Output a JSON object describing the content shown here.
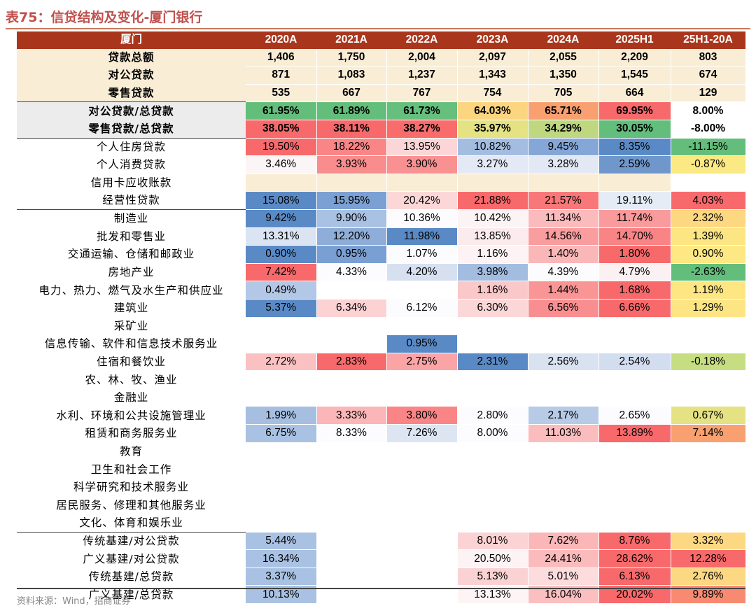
{
  "title": "表75：信贷结构及变化-厦门银行",
  "source": "资料来源：Wind，招商证券",
  "header": [
    "厦门",
    "2020A",
    "2021A",
    "2022A",
    "2023A",
    "2024A",
    "2025H1",
    "25H1-20A"
  ],
  "rows": [
    {
      "label": "贷款总额",
      "group": "summary",
      "values": [
        "1,406",
        "1,750",
        "2,004",
        "2,097",
        "2,055",
        "2,209",
        "803"
      ],
      "colors": [
        "",
        "",
        "",
        "",
        "",
        "",
        ""
      ]
    },
    {
      "label": "对公贷款",
      "group": "summary",
      "values": [
        "871",
        "1,083",
        "1,237",
        "1,343",
        "1,350",
        "1,545",
        "674"
      ],
      "colors": [
        "",
        "",
        "",
        "",
        "",
        "",
        ""
      ]
    },
    {
      "label": "零售贷款",
      "group": "summary",
      "values": [
        "535",
        "667",
        "767",
        "754",
        "705",
        "664",
        "129"
      ],
      "colors": [
        "",
        "",
        "",
        "",
        "",
        "",
        ""
      ]
    },
    {
      "label": "对公贷款/总贷款",
      "group": "ratio",
      "sep": true,
      "values": [
        "61.95%",
        "61.89%",
        "61.73%",
        "64.03%",
        "65.71%",
        "69.95%",
        "8.00%"
      ],
      "colors": [
        "#63be7b",
        "#63be7b",
        "#66bf7c",
        "#fcd580",
        "#f9a070",
        "#f8696b",
        "#ffffff"
      ]
    },
    {
      "label": "零售贷款/总贷款",
      "group": "ratio",
      "values": [
        "38.05%",
        "38.11%",
        "38.27%",
        "35.97%",
        "34.29%",
        "30.05%",
        "-8.00%"
      ],
      "colors": [
        "#f8696b",
        "#f8696b",
        "#f86d6c",
        "#e4e283",
        "#bfd880",
        "#63be7b",
        "#ffffff"
      ]
    },
    {
      "label": "个人住房贷款",
      "group": "detail",
      "sep": true,
      "values": [
        "19.50%",
        "18.22%",
        "13.95%",
        "10.82%",
        "9.45%",
        "8.35%",
        "-11.15%"
      ],
      "colors": [
        "#f8696b",
        "#f98587",
        "#fcd6d7",
        "#a3bde0",
        "#85a7d7",
        "#5a8ac6",
        "#63be7b"
      ]
    },
    {
      "label": "个人消费贷款",
      "group": "detail",
      "values": [
        "3.46%",
        "3.93%",
        "3.90%",
        "3.27%",
        "3.28%",
        "2.59%",
        "-0.87%"
      ],
      "colors": [
        "#fcf5f5",
        "#f98c8d",
        "#f99193",
        "#e3e9f5",
        "#e2e8f4",
        "#6f97cb",
        "#fbe983"
      ]
    },
    {
      "label": "信用卡应收账款",
      "group": "detail",
      "values": [
        "",
        "",
        "",
        "",
        "",
        "",
        ""
      ],
      "colors": [
        "#faedd6",
        "#faedd6",
        "#faedd6",
        "#faedd6",
        "#faedd6",
        "#faedd6",
        "#ffffff"
      ]
    },
    {
      "label": "经营性贷款",
      "group": "detail",
      "values": [
        "15.08%",
        "15.95%",
        "20.42%",
        "21.88%",
        "21.57%",
        "19.11%",
        "4.03%"
      ],
      "colors": [
        "#5a8ac6",
        "#7ba0d3",
        "#fcd7d8",
        "#f8696b",
        "#f8787a",
        "#e6ecf6",
        "#f8696b"
      ]
    },
    {
      "label": "制造业",
      "group": "detail",
      "sep": true,
      "values": [
        "9.42%",
        "9.90%",
        "10.36%",
        "10.42%",
        "11.34%",
        "11.74%",
        "2.32%"
      ],
      "colors": [
        "#5a8ac6",
        "#a9c1e2",
        "#fcfcff",
        "#fcf3f4",
        "#fbbabb",
        "#f99a9c",
        "#fed781"
      ]
    },
    {
      "label": "批发和零售业",
      "group": "detail",
      "values": [
        "13.31%",
        "12.20%",
        "11.98%",
        "13.85%",
        "14.56%",
        "14.70%",
        "1.39%"
      ],
      "colors": [
        "#dbe4f2",
        "#8fadd9",
        "#5a8ac6",
        "#fcebec",
        "#fa9d9f",
        "#f98486",
        "#fce583"
      ]
    },
    {
      "label": "交通运输、仓储和邮政业",
      "group": "detail",
      "values": [
        "0.90%",
        "0.95%",
        "1.07%",
        "1.16%",
        "1.40%",
        "1.80%",
        "0.90%"
      ],
      "colors": [
        "#5a8ac6",
        "#7a9fd2",
        "#fcfcff",
        "#fdf3f4",
        "#fab7b8",
        "#f8696b",
        "#fde884"
      ]
    },
    {
      "label": "房地产业",
      "group": "detail",
      "values": [
        "7.42%",
        "4.33%",
        "4.20%",
        "3.98%",
        "4.39%",
        "4.79%",
        "-2.63%"
      ],
      "colors": [
        "#f8696b",
        "#fcfcff",
        "#d6e0f0",
        "#a3bde0",
        "#fcfcff",
        "#fcf1f2",
        "#63be7b"
      ]
    },
    {
      "label": "电力、热力、燃气及水生产和供应业",
      "group": "detail",
      "values": [
        "0.49%",
        "",
        "",
        "1.16%",
        "1.44%",
        "1.68%",
        "1.19%"
      ],
      "colors": [
        "#b2c8e6",
        "",
        "",
        "#fbc8c9",
        "#fa9596",
        "#f8696b",
        "#fee683"
      ]
    },
    {
      "label": "建筑业",
      "group": "detail",
      "values": [
        "5.37%",
        "6.34%",
        "6.12%",
        "6.30%",
        "6.56%",
        "6.66%",
        "1.29%"
      ],
      "colors": [
        "#5a8ac6",
        "#fcd2d3",
        "#fcfcff",
        "#fcd7d8",
        "#f98e90",
        "#f8696b",
        "#fde583"
      ]
    },
    {
      "label": "采矿业",
      "group": "detail",
      "values": [
        "",
        "",
        "",
        "",
        "",
        "",
        ""
      ],
      "colors": [
        "",
        "",
        "",
        "",
        "",
        "",
        ""
      ]
    },
    {
      "label": "信息传输、软件和信息技术服务业",
      "group": "detail",
      "values": [
        "",
        "",
        "0.95%",
        "",
        "",
        "",
        ""
      ],
      "colors": [
        "",
        "",
        "#5a8ac6",
        "",
        "",
        "",
        ""
      ]
    },
    {
      "label": "住宿和餐饮业",
      "group": "detail",
      "values": [
        "2.72%",
        "2.83%",
        "2.75%",
        "2.31%",
        "2.56%",
        "2.54%",
        "-0.18%"
      ],
      "colors": [
        "#fbc1c2",
        "#f8696b",
        "#faa4a6",
        "#5a8ac6",
        "#d9e2f1",
        "#d2ddef",
        "#c7dd82"
      ]
    },
    {
      "label": "农、林、牧、渔业",
      "group": "detail",
      "values": [
        "",
        "",
        "",
        "",
        "",
        "",
        ""
      ],
      "colors": [
        "",
        "",
        "",
        "",
        "",
        "",
        ""
      ]
    },
    {
      "label": "金融业",
      "group": "detail",
      "values": [
        "",
        "",
        "",
        "",
        "",
        "",
        ""
      ],
      "colors": [
        "",
        "",
        "",
        "",
        "",
        "",
        ""
      ]
    },
    {
      "label": "水利、环境和公共设施管理业",
      "group": "detail",
      "values": [
        "1.99%",
        "3.33%",
        "3.80%",
        "2.80%",
        "2.17%",
        "2.65%",
        "0.67%"
      ],
      "colors": [
        "#a6bfe1",
        "#fbb6b7",
        "#f98587",
        "#fcfcff",
        "#b7cbe7",
        "#fcfcff",
        "#e4e283"
      ]
    },
    {
      "label": "租赁和商务服务业",
      "group": "detail",
      "values": [
        "6.75%",
        "8.33%",
        "7.26%",
        "8.00%",
        "11.03%",
        "13.89%",
        "7.14%"
      ],
      "colors": [
        "#a9c1e2",
        "#fcfcff",
        "#dde5f3",
        "#fcfcff",
        "#fbbcbd",
        "#f8696b",
        "#f9a070"
      ]
    },
    {
      "label": "教育",
      "group": "detail",
      "values": [
        "",
        "",
        "",
        "",
        "",
        "",
        ""
      ],
      "colors": [
        "",
        "",
        "",
        "",
        "",
        "",
        ""
      ]
    },
    {
      "label": "卫生和社会工作",
      "group": "detail",
      "values": [
        "",
        "",
        "",
        "",
        "",
        "",
        ""
      ],
      "colors": [
        "",
        "",
        "",
        "",
        "",
        "",
        ""
      ]
    },
    {
      "label": "科学研究和技术服务业",
      "group": "detail",
      "values": [
        "",
        "",
        "",
        "",
        "",
        "",
        ""
      ],
      "colors": [
        "",
        "",
        "",
        "",
        "",
        "",
        ""
      ]
    },
    {
      "label": "居民服务、修理和其他服务业",
      "group": "detail",
      "values": [
        "",
        "",
        "",
        "",
        "",
        "",
        ""
      ],
      "colors": [
        "",
        "",
        "",
        "",
        "",
        "",
        ""
      ]
    },
    {
      "label": "文化、体育和娱乐业",
      "group": "detail",
      "values": [
        "",
        "",
        "",
        "",
        "",
        "",
        ""
      ],
      "colors": [
        "",
        "",
        "",
        "",
        "",
        "",
        ""
      ]
    },
    {
      "label": "传统基建/对公贷款",
      "group": "detail",
      "sep": true,
      "values": [
        "5.44%",
        "",
        "",
        "8.01%",
        "7.62%",
        "8.76%",
        "3.32%"
      ],
      "colors": [
        "#a9c1e2",
        "",
        "",
        "#fbd3d4",
        "#fbb6b7",
        "#f8696b",
        "#fdd882"
      ]
    },
    {
      "label": "广义基建/对公贷款",
      "group": "detail",
      "values": [
        "16.34%",
        "",
        "",
        "20.50%",
        "24.41%",
        "28.62%",
        "12.28%"
      ],
      "colors": [
        "#a9c1e2",
        "",
        "",
        "#fdf3f4",
        "#fbbabb",
        "#f8696b",
        "#f8696b"
      ]
    },
    {
      "label": "传统基建/总贷款",
      "group": "detail",
      "values": [
        "3.37%",
        "",
        "",
        "5.13%",
        "5.01%",
        "6.13%",
        "2.76%"
      ],
      "colors": [
        "#a9c1e2",
        "",
        "",
        "#fbd2d3",
        "#fcdcdd",
        "#f8696b",
        "#fdd882"
      ]
    },
    {
      "label": "广义基建/总贷款",
      "group": "detail",
      "values": [
        "10.13%",
        "",
        "",
        "13.13%",
        "16.04%",
        "20.02%",
        "9.89%"
      ],
      "colors": [
        "#a9c1e2",
        "",
        "",
        "#fdf5f5",
        "#fbbfc0",
        "#f8696b",
        "#f98a72"
      ]
    }
  ]
}
